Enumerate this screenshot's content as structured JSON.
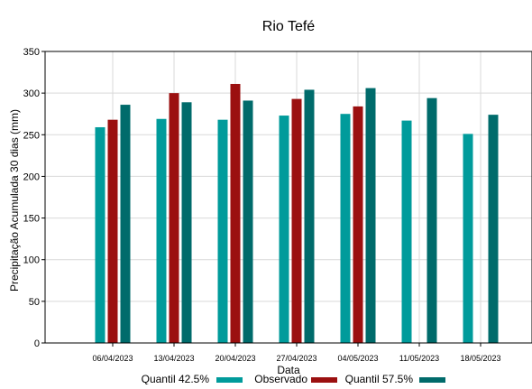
{
  "chart_data": {
    "type": "bar",
    "title": "Rio Tefé",
    "xlabel": "Data",
    "ylabel": "Precipitação Acumulada 30 dias (mm)",
    "ylim": [
      0,
      350
    ],
    "yticks": [
      0,
      50,
      100,
      150,
      200,
      250,
      300,
      350
    ],
    "grid": true,
    "legend_position": "bottom",
    "categories": [
      "06/04/2023",
      "13/04/2023",
      "20/04/2023",
      "27/04/2023",
      "04/05/2023",
      "11/05/2023",
      "18/05/2023"
    ],
    "series": [
      {
        "name": "Quantil 42.5%",
        "color": "#009b9b",
        "values": [
          259,
          269,
          268,
          273,
          275,
          267,
          251
        ]
      },
      {
        "name": "Observado",
        "color": "#9b1010",
        "values": [
          268,
          300,
          311,
          293,
          284,
          null,
          null
        ]
      },
      {
        "name": "Quantil 57.5%",
        "color": "#006b6b",
        "values": [
          286,
          289,
          291,
          304,
          306,
          294,
          274
        ]
      }
    ]
  }
}
